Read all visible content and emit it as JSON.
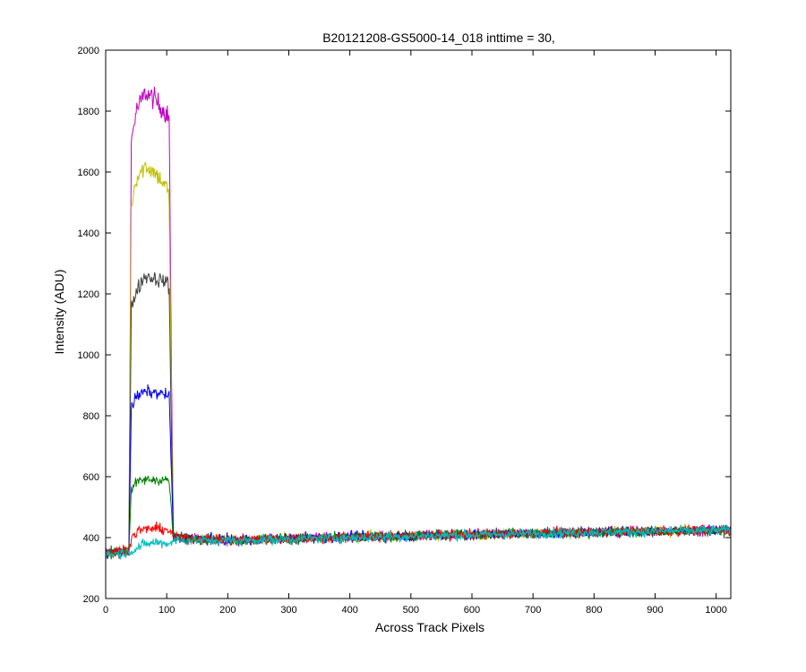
{
  "chart_data": {
    "type": "line",
    "title": "B20121208-GS5000-14_018 inttime = 30,",
    "xlabel": "Across Track Pixels",
    "ylabel": "Intensity (ADU)",
    "xlim": [
      0,
      1024
    ],
    "ylim": [
      200,
      2000
    ],
    "xticks": [
      0,
      100,
      200,
      300,
      400,
      500,
      600,
      700,
      800,
      900,
      1000
    ],
    "yticks": [
      200,
      400,
      600,
      800,
      1000,
      1200,
      1400,
      1600,
      1800,
      2000
    ],
    "grid": false,
    "legend": "none",
    "noise_level": 12,
    "series": [
      {
        "color": "#bf00bf",
        "noise": 25,
        "points": [
          [
            0,
            350
          ],
          [
            38,
            360
          ],
          [
            42,
            1700
          ],
          [
            50,
            1800
          ],
          [
            65,
            1860
          ],
          [
            80,
            1840
          ],
          [
            100,
            1790
          ],
          [
            104,
            1780
          ],
          [
            108,
            900
          ],
          [
            111,
            400
          ],
          [
            200,
            392
          ],
          [
            400,
            403
          ],
          [
            600,
            410
          ],
          [
            800,
            418
          ],
          [
            1024,
            425
          ]
        ]
      },
      {
        "color": "#bfbf00",
        "noise": 22,
        "points": [
          [
            0,
            350
          ],
          [
            38,
            360
          ],
          [
            42,
            1490
          ],
          [
            50,
            1580
          ],
          [
            65,
            1620
          ],
          [
            80,
            1600
          ],
          [
            100,
            1550
          ],
          [
            104,
            1510
          ],
          [
            108,
            800
          ],
          [
            111,
            400
          ],
          [
            200,
            393
          ],
          [
            400,
            402
          ],
          [
            600,
            409
          ],
          [
            800,
            417
          ],
          [
            1024,
            424
          ]
        ]
      },
      {
        "color": "#404040",
        "noise": 18,
        "points": [
          [
            0,
            348
          ],
          [
            38,
            358
          ],
          [
            42,
            1150
          ],
          [
            50,
            1210
          ],
          [
            65,
            1260
          ],
          [
            80,
            1250
          ],
          [
            100,
            1240
          ],
          [
            104,
            1220
          ],
          [
            108,
            700
          ],
          [
            111,
            400
          ],
          [
            200,
            391
          ],
          [
            400,
            401
          ],
          [
            600,
            410
          ],
          [
            800,
            416
          ],
          [
            1024,
            423
          ]
        ]
      },
      {
        "color": "#0000ff",
        "noise": 14,
        "points": [
          [
            0,
            349
          ],
          [
            38,
            356
          ],
          [
            42,
            830
          ],
          [
            50,
            860
          ],
          [
            65,
            880
          ],
          [
            80,
            875
          ],
          [
            100,
            870
          ],
          [
            104,
            860
          ],
          [
            108,
            600
          ],
          [
            111,
            400
          ],
          [
            200,
            392
          ],
          [
            400,
            402
          ],
          [
            600,
            408
          ],
          [
            800,
            418
          ],
          [
            1024,
            426
          ]
        ]
      },
      {
        "color": "#008000",
        "noise": 12,
        "points": [
          [
            0,
            350
          ],
          [
            38,
            357
          ],
          [
            42,
            560
          ],
          [
            50,
            580
          ],
          [
            65,
            590
          ],
          [
            80,
            590
          ],
          [
            100,
            590
          ],
          [
            104,
            585
          ],
          [
            108,
            480
          ],
          [
            111,
            400
          ],
          [
            200,
            391
          ],
          [
            400,
            400
          ],
          [
            600,
            411
          ],
          [
            800,
            417
          ],
          [
            1024,
            424
          ]
        ]
      },
      {
        "color": "#ff0000",
        "noise": 12,
        "points": [
          [
            0,
            351
          ],
          [
            38,
            360
          ],
          [
            42,
            400
          ],
          [
            55,
            425
          ],
          [
            80,
            430
          ],
          [
            104,
            425
          ],
          [
            111,
            400
          ],
          [
            200,
            392
          ],
          [
            400,
            401
          ],
          [
            600,
            410
          ],
          [
            800,
            419
          ],
          [
            1024,
            425
          ]
        ]
      },
      {
        "color": "#00bfbf",
        "noise": 10,
        "points": [
          [
            0,
            345
          ],
          [
            38,
            352
          ],
          [
            60,
            375
          ],
          [
            80,
            385
          ],
          [
            104,
            380
          ],
          [
            111,
            392
          ],
          [
            200,
            390
          ],
          [
            400,
            400
          ],
          [
            600,
            409
          ],
          [
            800,
            418
          ],
          [
            1024,
            424
          ]
        ]
      }
    ]
  }
}
